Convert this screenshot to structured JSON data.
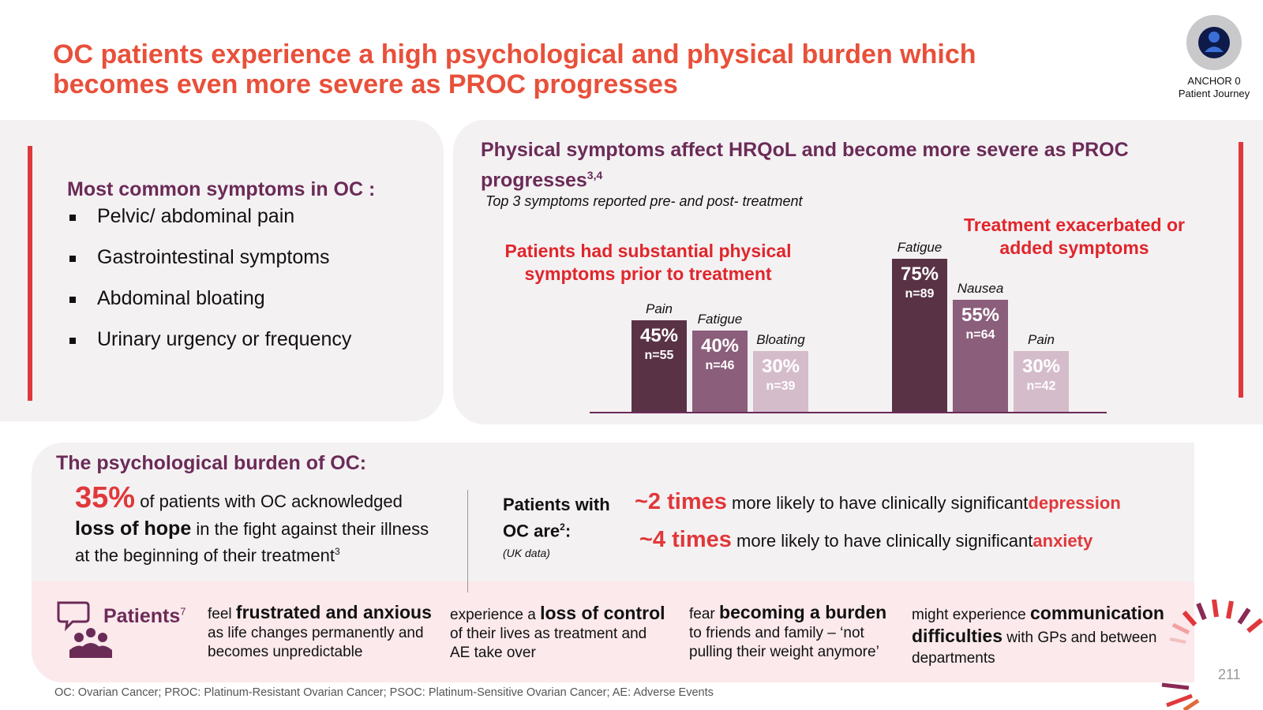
{
  "title": {
    "line1": "OC patients experience a high psychological and physical burden which",
    "line2": "becomes even more severe as PROC progresses"
  },
  "anchor": {
    "line1": "ANCHOR 0",
    "line2": "Patient Journey"
  },
  "left_panel": {
    "heading": "Most common symptoms in OC :",
    "items": [
      "Pelvic/ abdominal pain",
      "Gastrointestinal symptoms",
      "Abdominal bloating",
      "Urinary urgency or frequency"
    ]
  },
  "right_panel": {
    "heading": "Physical symptoms affect  HRQoL and become more severe as PROC",
    "heading2": "progresses",
    "heading_sup": "3,4",
    "subtitle": "Top 3 symptoms reported pre- and post- treatment",
    "note_pre_line1": "Patients had substantial physical",
    "note_pre_line2": "symptoms prior to treatment",
    "note_post_line1": "Treatment exacerbated or",
    "note_post_line2": "added symptoms"
  },
  "chart_data": {
    "type": "bar",
    "title": "Top 3 symptoms reported pre- and post- treatment",
    "groups": [
      {
        "name": "pre-treatment",
        "bars": [
          {
            "label": "Pain",
            "value": 45,
            "pct": "45%",
            "n": "n=55",
            "color": "#5a3245"
          },
          {
            "label": "Fatigue",
            "value": 40,
            "pct": "40%",
            "n": "n=46",
            "color": "#8b5e7b"
          },
          {
            "label": "Bloating",
            "value": 30,
            "pct": "30%",
            "n": "n=39",
            "color": "#d5bccb"
          }
        ]
      },
      {
        "name": "post-treatment",
        "bars": [
          {
            "label": "Fatigue",
            "value": 75,
            "pct": "75%",
            "n": "n=89",
            "color": "#5a3245"
          },
          {
            "label": "Nausea",
            "value": 55,
            "pct": "55%",
            "n": "n=64",
            "color": "#8b5e7b"
          },
          {
            "label": "Pain",
            "value": 30,
            "pct": "30%",
            "n": "n=42",
            "color": "#d5bccb"
          }
        ]
      }
    ],
    "ylim": [
      0,
      100
    ]
  },
  "psych": {
    "heading": "The psychological burden of OC:",
    "stat_pct": "35%",
    "stat_text1": "of patients with OC acknowledged",
    "stat_bold": "loss of hope",
    "stat_text2": "in the fight against their illness",
    "stat_text3": "at the beginning of their treatment",
    "stat_sup": "3",
    "patients_with_line1": "Patients with",
    "patients_with_line2": "OC are",
    "patients_with_sup": "2",
    "patients_with_colon": ":",
    "uk_data": "(UK data)",
    "row1_times": "~2 times",
    "row1_text": "more likely to have clinically significant",
    "row1_red": "depression",
    "row2_times": "~4 times",
    "row2_text": "more likely to have clinically significant",
    "row2_red": "anxiety"
  },
  "patients_band": {
    "label": "Patients",
    "label_sup": "7",
    "col1_pre": "feel",
    "col1_bold": "frustrated and anxious",
    "col1_rest1": "as life changes permanently and",
    "col1_rest2": "becomes unpredictable",
    "col2_pre": "experience a",
    "col2_bold": "loss of control",
    "col2_rest1": "of their lives as treatment and",
    "col2_rest2": "AE take over",
    "col3_pre": "fear",
    "col3_bold": "becoming a burden",
    "col3_rest1": "to friends and family – ‘not",
    "col3_rest2": "pulling their weight anymore’",
    "col4_pre": "might experience",
    "col4_bold1": "communication",
    "col4_bold2": "difficulties",
    "col4_rest1": "with GPs and between",
    "col4_rest2": "departments"
  },
  "footer": "OC: Ovarian Cancer; PROC: Platinum-Resistant Ovarian Cancer; PSOC: Platinum-Sensitive Ovarian Cancer; AE: Adverse Events",
  "page_number": "211"
}
